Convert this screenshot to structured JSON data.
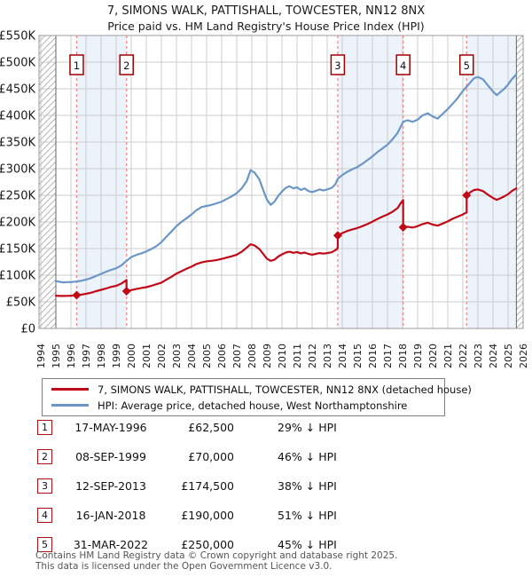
{
  "page": {
    "title": "7, SIMONS WALK, PATTISHALL, TOWCESTER, NN12 8NX",
    "subtitle": "Price paid vs. HM Land Registry's House Price Index (HPI)"
  },
  "legend": {
    "items": [
      {
        "label": "7, SIMONS WALK, PATTISHALL, TOWCESTER, NN12 8NX (detached house)",
        "color": "#c00a18"
      },
      {
        "label": "HPI: Average price, detached house, West Northamptonshire",
        "color": "#6b96c6"
      }
    ]
  },
  "footer": {
    "line1": "Contains HM Land Registry data © Crown copyright and database right 2025.",
    "line2": "This data is licensed under the Open Government Licence v3.0."
  },
  "chart_data": {
    "type": "line",
    "title": "7, SIMONS WALK, PATTISHALL, TOWCESTER, NN12 8NX",
    "subtitle": "Price paid vs. HM Land Registry's House Price Index (HPI)",
    "x_range": [
      1994,
      2026
    ],
    "y_range_thousands": [
      0,
      550
    ],
    "grid": true,
    "legend_position": "bottom",
    "x_ticks": [
      1994,
      1995,
      1996,
      1997,
      1998,
      1999,
      2000,
      2001,
      2002,
      2003,
      2004,
      2005,
      2006,
      2007,
      2008,
      2009,
      2010,
      2011,
      2012,
      2013,
      2014,
      2015,
      2016,
      2017,
      2018,
      2019,
      2020,
      2021,
      2022,
      2023,
      2024,
      2025,
      2026
    ],
    "y_ticks": [
      {
        "v": 0,
        "label": "£0"
      },
      {
        "v": 50,
        "label": "£50K"
      },
      {
        "v": 100,
        "label": "£100K"
      },
      {
        "v": 150,
        "label": "£150K"
      },
      {
        "v": 200,
        "label": "£200K"
      },
      {
        "v": 250,
        "label": "£250K"
      },
      {
        "v": 300,
        "label": "£300K"
      },
      {
        "v": 350,
        "label": "£350K"
      },
      {
        "v": 400,
        "label": "£400K"
      },
      {
        "v": 450,
        "label": "£450K"
      },
      {
        "v": 500,
        "label": "£500K"
      },
      {
        "v": 550,
        "label": "£550K"
      }
    ],
    "data_start": 1995.0,
    "data_end": 2025.55,
    "shaded_periods": [
      [
        1996.38,
        1999.69
      ],
      [
        2013.7,
        2018.04
      ],
      [
        2022.25,
        2025.55
      ]
    ],
    "colors": {
      "price_line": "#c00a18",
      "hpi_line": "#6b96c6",
      "sale_marker": "#c00a18",
      "sale_dash": "#f28b8b",
      "band": "#edf3fb",
      "grid": "#cccccc",
      "border": "#999999",
      "hatch": "#b5b5b5",
      "data_edge": "#666666",
      "num_box_border": "#a00000"
    },
    "sales": [
      {
        "n": "1",
        "date": "17-MAY-1996",
        "price": "£62,500",
        "pct": "29% ↓ HPI",
        "year": 1996.38,
        "value": 62.5
      },
      {
        "n": "2",
        "date": "08-SEP-1999",
        "price": "£70,000",
        "pct": "46% ↓ HPI",
        "year": 1999.69,
        "value": 70
      },
      {
        "n": "3",
        "date": "12-SEP-2013",
        "price": "£174,500",
        "pct": "38% ↓ HPI",
        "year": 2013.7,
        "value": 174.5
      },
      {
        "n": "4",
        "date": "16-JAN-2018",
        "price": "£190,000",
        "pct": "51% ↓ HPI",
        "year": 2018.04,
        "value": 190
      },
      {
        "n": "5",
        "date": "31-MAR-2022",
        "price": "£250,000",
        "pct": "45% ↓ HPI",
        "year": 2022.25,
        "value": 250
      }
    ],
    "series": [
      {
        "name": "7, SIMONS WALK, PATTISHALL, TOWCESTER, NN12 8NX (detached house)",
        "unit": "GBP thousands",
        "points": [
          [
            1995.0,
            61.5
          ],
          [
            1995.25,
            61
          ],
          [
            1995.5,
            61
          ],
          [
            1995.75,
            61.2
          ],
          [
            1996.0,
            61.5
          ],
          [
            1996.38,
            62.5
          ],
          [
            1996.67,
            63.5
          ],
          [
            1997.0,
            65
          ],
          [
            1997.33,
            67
          ],
          [
            1997.67,
            70
          ],
          [
            1998.0,
            72.5
          ],
          [
            1998.33,
            75
          ],
          [
            1998.67,
            78
          ],
          [
            1999.0,
            80
          ],
          [
            1999.33,
            84
          ],
          [
            1999.55,
            88
          ],
          [
            1999.69,
            91
          ],
          [
            1999.69,
            70
          ],
          [
            2000.0,
            72
          ],
          [
            2000.33,
            74
          ],
          [
            2000.67,
            76
          ],
          [
            2001.0,
            77.5
          ],
          [
            2001.33,
            80
          ],
          [
            2001.67,
            83
          ],
          [
            2002.0,
            86
          ],
          [
            2002.33,
            91.5
          ],
          [
            2002.67,
            97
          ],
          [
            2003.0,
            103
          ],
          [
            2003.33,
            107.5
          ],
          [
            2003.67,
            112
          ],
          [
            2004.0,
            116
          ],
          [
            2004.33,
            121
          ],
          [
            2004.67,
            124
          ],
          [
            2005.0,
            126
          ],
          [
            2005.33,
            127
          ],
          [
            2005.67,
            128.5
          ],
          [
            2006.0,
            130.5
          ],
          [
            2006.33,
            133
          ],
          [
            2006.67,
            135.5
          ],
          [
            2007.0,
            138.5
          ],
          [
            2007.33,
            144
          ],
          [
            2007.67,
            152
          ],
          [
            2007.92,
            158
          ],
          [
            2008.17,
            156
          ],
          [
            2008.5,
            149
          ],
          [
            2008.75,
            140
          ],
          [
            2009.0,
            131
          ],
          [
            2009.25,
            127
          ],
          [
            2009.5,
            129
          ],
          [
            2009.75,
            135
          ],
          [
            2010.0,
            139
          ],
          [
            2010.25,
            142.5
          ],
          [
            2010.5,
            144
          ],
          [
            2010.75,
            142
          ],
          [
            2011.0,
            143.5
          ],
          [
            2011.25,
            141
          ],
          [
            2011.5,
            142.5
          ],
          [
            2011.75,
            140
          ],
          [
            2012.0,
            138.5
          ],
          [
            2012.25,
            140
          ],
          [
            2012.5,
            141.5
          ],
          [
            2012.75,
            140.5
          ],
          [
            2013.0,
            141.5
          ],
          [
            2013.3,
            143
          ],
          [
            2013.55,
            147
          ],
          [
            2013.7,
            151
          ],
          [
            2013.7,
            174.5
          ],
          [
            2014.0,
            179
          ],
          [
            2014.33,
            183
          ],
          [
            2014.67,
            186
          ],
          [
            2015.0,
            188.5
          ],
          [
            2015.33,
            192
          ],
          [
            2015.67,
            196
          ],
          [
            2016.0,
            200.5
          ],
          [
            2016.33,
            205.5
          ],
          [
            2016.67,
            210
          ],
          [
            2017.0,
            214
          ],
          [
            2017.33,
            219
          ],
          [
            2017.67,
            226
          ],
          [
            2017.9,
            236
          ],
          [
            2018.04,
            241
          ],
          [
            2018.04,
            190
          ],
          [
            2018.33,
            191
          ],
          [
            2018.67,
            189.5
          ],
          [
            2019.0,
            192
          ],
          [
            2019.33,
            196
          ],
          [
            2019.67,
            198.5
          ],
          [
            2020.0,
            195
          ],
          [
            2020.33,
            193
          ],
          [
            2020.67,
            197
          ],
          [
            2021.0,
            201
          ],
          [
            2021.33,
            206
          ],
          [
            2021.67,
            210
          ],
          [
            2022.0,
            214
          ],
          [
            2022.25,
            218
          ],
          [
            2022.25,
            250
          ],
          [
            2022.5,
            256
          ],
          [
            2022.75,
            260
          ],
          [
            2023.0,
            261
          ],
          [
            2023.33,
            258
          ],
          [
            2023.67,
            251
          ],
          [
            2024.0,
            245
          ],
          [
            2024.25,
            241.5
          ],
          [
            2024.5,
            244.5
          ],
          [
            2024.75,
            248
          ],
          [
            2025.0,
            252
          ],
          [
            2025.25,
            258
          ],
          [
            2025.55,
            263
          ]
        ]
      },
      {
        "name": "HPI: Average price, detached house, West Northamptonshire",
        "unit": "GBP thousands",
        "points": [
          [
            1995.0,
            89
          ],
          [
            1995.25,
            87.5
          ],
          [
            1995.5,
            86.5
          ],
          [
            1995.75,
            87
          ],
          [
            1996.0,
            87
          ],
          [
            1996.33,
            88
          ],
          [
            1996.67,
            89.5
          ],
          [
            1997.0,
            91.5
          ],
          [
            1997.33,
            94.5
          ],
          [
            1997.67,
            98.5
          ],
          [
            1998.0,
            102.5
          ],
          [
            1998.33,
            106.5
          ],
          [
            1998.67,
            110
          ],
          [
            1999.0,
            113
          ],
          [
            1999.33,
            118
          ],
          [
            1999.69,
            127
          ],
          [
            2000.0,
            134
          ],
          [
            2000.33,
            138
          ],
          [
            2000.67,
            141
          ],
          [
            2001.0,
            144.5
          ],
          [
            2001.33,
            149
          ],
          [
            2001.67,
            154.5
          ],
          [
            2002.0,
            162
          ],
          [
            2002.33,
            172
          ],
          [
            2002.67,
            182
          ],
          [
            2003.0,
            192
          ],
          [
            2003.33,
            200
          ],
          [
            2003.67,
            207
          ],
          [
            2004.0,
            214
          ],
          [
            2004.33,
            222
          ],
          [
            2004.67,
            228
          ],
          [
            2005.0,
            230
          ],
          [
            2005.33,
            232
          ],
          [
            2005.67,
            235
          ],
          [
            2006.0,
            238
          ],
          [
            2006.33,
            243
          ],
          [
            2006.67,
            248
          ],
          [
            2007.0,
            254
          ],
          [
            2007.33,
            263
          ],
          [
            2007.67,
            277
          ],
          [
            2007.92,
            297
          ],
          [
            2008.17,
            293
          ],
          [
            2008.5,
            280
          ],
          [
            2008.75,
            260
          ],
          [
            2009.0,
            242
          ],
          [
            2009.25,
            232
          ],
          [
            2009.5,
            238
          ],
          [
            2009.75,
            249
          ],
          [
            2010.0,
            257
          ],
          [
            2010.25,
            264
          ],
          [
            2010.5,
            267
          ],
          [
            2010.75,
            263
          ],
          [
            2011.0,
            265
          ],
          [
            2011.25,
            260
          ],
          [
            2011.5,
            263
          ],
          [
            2011.75,
            258
          ],
          [
            2012.0,
            256
          ],
          [
            2012.25,
            258.5
          ],
          [
            2012.5,
            261
          ],
          [
            2012.75,
            259
          ],
          [
            2013.0,
            261
          ],
          [
            2013.3,
            264
          ],
          [
            2013.55,
            271
          ],
          [
            2013.7,
            281
          ],
          [
            2014.0,
            288
          ],
          [
            2014.33,
            294
          ],
          [
            2014.67,
            299
          ],
          [
            2015.0,
            303
          ],
          [
            2015.33,
            309
          ],
          [
            2015.67,
            316
          ],
          [
            2016.0,
            323
          ],
          [
            2016.33,
            331
          ],
          [
            2016.67,
            338
          ],
          [
            2017.0,
            345
          ],
          [
            2017.33,
            355
          ],
          [
            2017.67,
            367
          ],
          [
            2017.9,
            380
          ],
          [
            2018.04,
            388
          ],
          [
            2018.33,
            391
          ],
          [
            2018.67,
            388
          ],
          [
            2019.0,
            392
          ],
          [
            2019.33,
            400
          ],
          [
            2019.67,
            404
          ],
          [
            2020.0,
            398
          ],
          [
            2020.33,
            394
          ],
          [
            2020.67,
            403
          ],
          [
            2021.0,
            412
          ],
          [
            2021.33,
            422
          ],
          [
            2021.67,
            433
          ],
          [
            2022.0,
            446
          ],
          [
            2022.25,
            454
          ],
          [
            2022.5,
            462
          ],
          [
            2022.75,
            470
          ],
          [
            2023.0,
            472
          ],
          [
            2023.33,
            468
          ],
          [
            2023.67,
            456
          ],
          [
            2024.0,
            445
          ],
          [
            2024.25,
            438
          ],
          [
            2024.5,
            444
          ],
          [
            2024.75,
            450
          ],
          [
            2025.0,
            458
          ],
          [
            2025.25,
            468
          ],
          [
            2025.55,
            477
          ]
        ]
      }
    ]
  }
}
